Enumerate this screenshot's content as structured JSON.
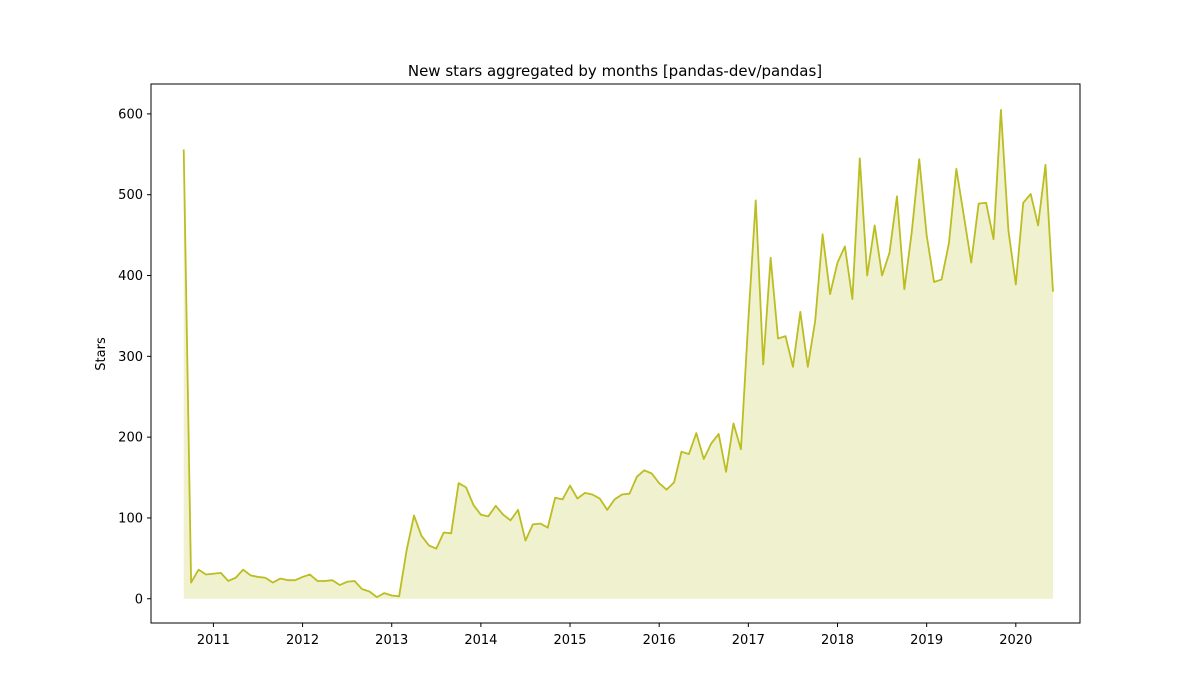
{
  "chart_data": {
    "type": "area",
    "title": "New stars aggregated by months [pandas-dev/pandas]",
    "xlabel": "",
    "ylabel": "Stars",
    "x_unit": "year (decimal)",
    "xlim": [
      2010.3,
      2020.72
    ],
    "ylim": [
      -30,
      637
    ],
    "x_ticks": [
      2011,
      2012,
      2013,
      2014,
      2015,
      2016,
      2017,
      2018,
      2019,
      2020
    ],
    "x_tick_labels": [
      "2011",
      "2012",
      "2013",
      "2014",
      "2015",
      "2016",
      "2017",
      "2018",
      "2019",
      "2020"
    ],
    "y_ticks": [
      0,
      100,
      200,
      300,
      400,
      500,
      600
    ],
    "y_tick_labels": [
      "0",
      "100",
      "200",
      "300",
      "400",
      "500",
      "600"
    ],
    "grid": false,
    "colors": {
      "line": "#bcbd22",
      "fill": "#bcbd22"
    },
    "series": [
      {
        "x": [
          2010.667,
          2010.75,
          2010.833,
          2010.917,
          2011.0,
          2011.083,
          2011.167,
          2011.25,
          2011.333,
          2011.417,
          2011.5,
          2011.583,
          2011.667,
          2011.75,
          2011.833,
          2011.917,
          2012.0,
          2012.083,
          2012.167,
          2012.25,
          2012.333,
          2012.417,
          2012.5,
          2012.583,
          2012.667,
          2012.75,
          2012.833,
          2012.917,
          2013.0,
          2013.083,
          2013.167,
          2013.25,
          2013.333,
          2013.417,
          2013.5,
          2013.583,
          2013.667,
          2013.75,
          2013.833,
          2013.917,
          2014.0,
          2014.083,
          2014.167,
          2014.25,
          2014.333,
          2014.417,
          2014.5,
          2014.583,
          2014.667,
          2014.75,
          2014.833,
          2014.917,
          2015.0,
          2015.083,
          2015.167,
          2015.25,
          2015.333,
          2015.417,
          2015.5,
          2015.583,
          2015.667,
          2015.75,
          2015.833,
          2015.917,
          2016.0,
          2016.083,
          2016.167,
          2016.25,
          2016.333,
          2016.417,
          2016.5,
          2016.583,
          2016.667,
          2016.75,
          2016.833,
          2016.917,
          2017.0,
          2017.083,
          2017.167,
          2017.25,
          2017.333,
          2017.417,
          2017.5,
          2017.583,
          2017.667,
          2017.75,
          2017.833,
          2017.917,
          2018.0,
          2018.083,
          2018.167,
          2018.25,
          2018.333,
          2018.417,
          2018.5,
          2018.583,
          2018.667,
          2018.75,
          2018.833,
          2018.917,
          2019.0,
          2019.083,
          2019.167,
          2019.25,
          2019.333,
          2019.417,
          2019.5,
          2019.583,
          2019.667,
          2019.75,
          2019.833,
          2019.917,
          2020.0,
          2020.083,
          2020.167,
          2020.25,
          2020.333,
          2020.417
        ],
        "values": [
          556,
          20,
          36,
          30,
          31,
          32,
          22,
          26,
          36,
          29,
          27,
          26,
          20,
          25,
          23,
          23,
          27,
          30,
          22,
          22,
          23,
          17,
          21,
          22,
          12,
          9,
          2,
          7,
          4,
          3,
          60,
          103,
          78,
          66,
          62,
          82,
          81,
          143,
          138,
          116,
          104,
          102,
          115,
          104,
          97,
          110,
          72,
          92,
          93,
          88,
          125,
          123,
          140,
          124,
          131,
          129,
          124,
          110,
          123,
          129,
          130,
          151,
          159,
          155,
          143,
          135,
          144,
          182,
          179,
          205,
          173,
          192,
          204,
          157,
          217,
          185,
          345,
          493,
          290,
          422,
          322,
          325,
          287,
          355,
          287,
          344,
          451,
          377,
          416,
          436,
          371,
          545,
          400,
          462,
          400,
          428,
          498,
          383,
          454,
          544,
          450,
          392,
          395,
          440,
          532,
          474,
          416,
          489,
          490,
          445,
          605,
          456,
          389,
          490,
          501,
          462,
          537,
          380
        ]
      }
    ]
  }
}
